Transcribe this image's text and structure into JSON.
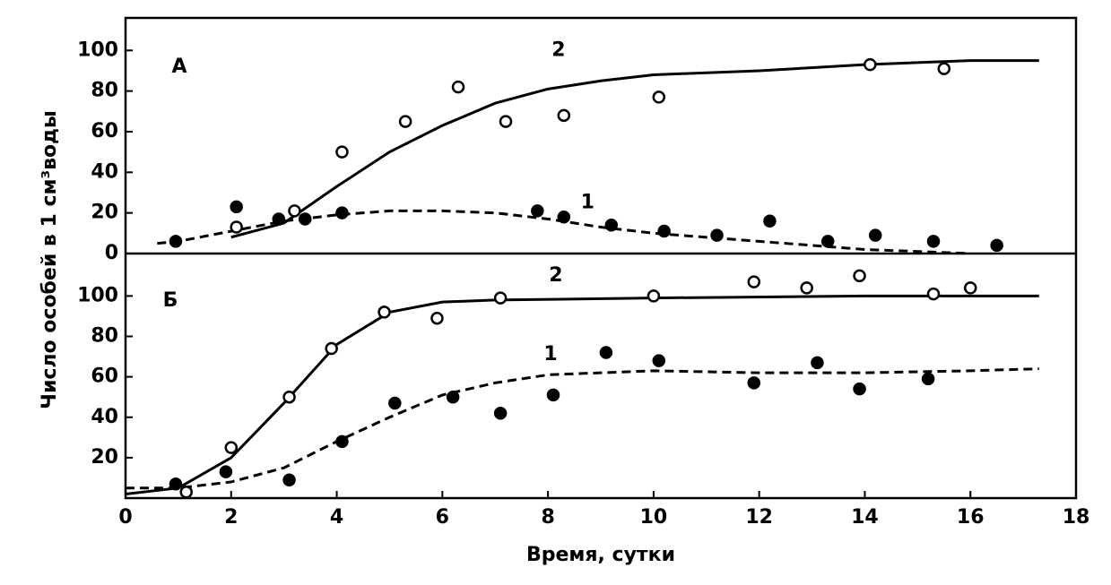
{
  "chart_data": [
    {
      "type": "line",
      "label": "А",
      "y_label": "Число особей в 1 см³воды",
      "xlim": [
        0,
        18
      ],
      "ylim": [
        0,
        116
      ],
      "yticks": [
        0,
        20,
        40,
        60,
        80,
        100
      ],
      "series": [
        {
          "name": "1",
          "color": "#000000",
          "dashed": true,
          "filled": true,
          "curve": {
            "x": [
              0.6,
              1,
              2,
              3,
              4,
              5,
              6,
              7,
              8,
              9,
              10,
              11,
              12,
              13,
              14,
              15,
              16
            ],
            "values": [
              5,
              6,
              11,
              16,
              19,
              21,
              21,
              20,
              17,
              13,
              10,
              8,
              6,
              4,
              2,
              1,
              0
            ]
          },
          "points": {
            "x": [
              0.95,
              2.1,
              2.9,
              3.4,
              4.1,
              7.8,
              8.3,
              9.2,
              10.2,
              11.2,
              12.2,
              13.3,
              14.2,
              15.3,
              16.5
            ],
            "values": [
              6,
              23,
              17,
              17,
              20,
              21,
              18,
              14,
              11,
              9,
              16,
              6,
              9,
              6,
              4
            ]
          }
        },
        {
          "name": "2",
          "color": "#000000",
          "dashed": false,
          "filled": false,
          "curve": {
            "x": [
              2,
              3,
              4,
              5,
              6,
              7,
              8,
              9,
              10,
              12,
              14,
              16,
              17.3
            ],
            "values": [
              8,
              15,
              33,
              50,
              63,
              74,
              81,
              85,
              88,
              90,
              93,
              95,
              95
            ]
          },
          "points": {
            "x": [
              2.1,
              3.2,
              4.1,
              5.3,
              6.3,
              7.2,
              8.3,
              10.1,
              14.1,
              15.5
            ],
            "values": [
              13,
              21,
              50,
              65,
              82,
              65,
              68,
              77,
              93,
              91
            ]
          }
        }
      ]
    },
    {
      "type": "line",
      "label": "Б",
      "x_label": "Время, сутки",
      "xlim": [
        0,
        18
      ],
      "xticks": [
        0,
        2,
        4,
        6,
        8,
        10,
        12,
        14,
        16,
        18
      ],
      "ylim": [
        0,
        121
      ],
      "yticks": [
        20,
        40,
        60,
        80,
        100
      ],
      "series": [
        {
          "name": "1",
          "color": "#000000",
          "dashed": true,
          "filled": true,
          "curve": {
            "x": [
              0,
              1,
              2,
              3,
              4,
              5,
              6,
              7,
              8,
              9,
              10,
              12,
              14,
              16,
              17.3
            ],
            "values": [
              5,
              5,
              8,
              15,
              28,
              40,
              51,
              57,
              61,
              62,
              63,
              62,
              62,
              63,
              64
            ]
          },
          "points": {
            "x": [
              0.95,
              1.9,
              3.1,
              4.1,
              5.1,
              6.2,
              7.1,
              8.1,
              9.1,
              10.1,
              11.9,
              13.1,
              13.9,
              15.2
            ],
            "values": [
              7,
              13,
              9,
              28,
              47,
              50,
              42,
              51,
              72,
              68,
              57,
              67,
              54,
              59
            ]
          }
        },
        {
          "name": "2",
          "color": "#000000",
          "dashed": false,
          "filled": false,
          "curve": {
            "x": [
              0,
              1,
              2,
              3,
              4,
              5,
              6,
              7,
              10,
              14,
              17.3
            ],
            "values": [
              2,
              5,
              20,
              47,
              76,
              92,
              97,
              98,
              99,
              100,
              100
            ]
          },
          "points": {
            "x": [
              1.15,
              2,
              3.1,
              3.9,
              4.9,
              5.9,
              7.1,
              10,
              11.9,
              12.9,
              13.9,
              15.3,
              16
            ],
            "values": [
              3,
              25,
              50,
              74,
              92,
              89,
              99,
              100,
              107,
              104,
              110,
              101,
              104
            ]
          }
        }
      ]
    }
  ]
}
